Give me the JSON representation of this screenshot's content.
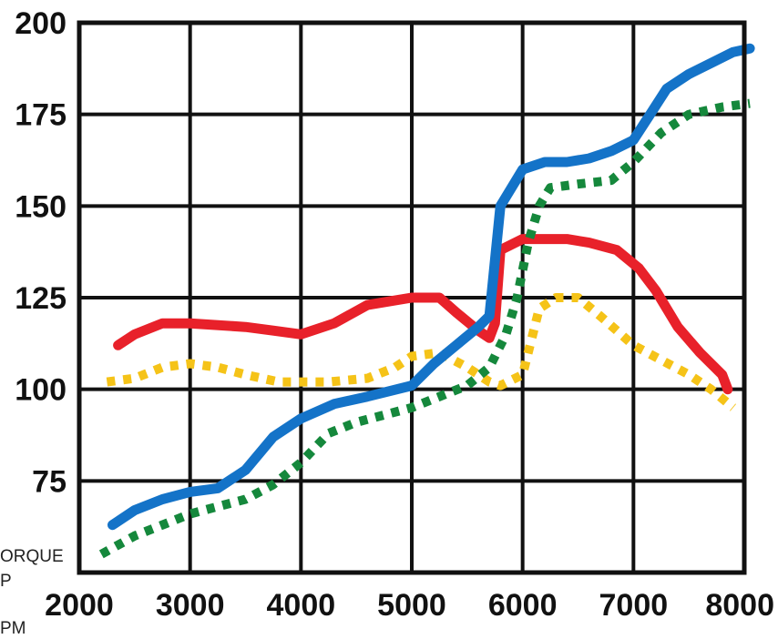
{
  "chart_data": {
    "type": "line",
    "xlim": [
      2000,
      8000
    ],
    "ylim": [
      50,
      200
    ],
    "x_ticks": [
      "2000",
      "3000",
      "4000",
      "5000",
      "6000",
      "7000",
      "8000"
    ],
    "y_ticks": [
      "75",
      "100",
      "125",
      "150",
      "175",
      "200"
    ],
    "grid": true,
    "legend_labels": [
      "ORQUE",
      "P",
      "PM"
    ],
    "series": [
      {
        "color": "#e8212a",
        "style": "solid",
        "points": [
          [
            2350,
            112
          ],
          [
            2500,
            115
          ],
          [
            2750,
            118
          ],
          [
            3000,
            118
          ],
          [
            3500,
            117
          ],
          [
            3750,
            116
          ],
          [
            4000,
            115
          ],
          [
            4300,
            118
          ],
          [
            4600,
            123
          ],
          [
            5000,
            125
          ],
          [
            5250,
            125
          ],
          [
            5400,
            121
          ],
          [
            5600,
            116
          ],
          [
            5700,
            114
          ],
          [
            5750,
            118
          ],
          [
            5800,
            138
          ],
          [
            6000,
            141
          ],
          [
            6400,
            141
          ],
          [
            6600,
            140
          ],
          [
            6850,
            138
          ],
          [
            7050,
            133
          ],
          [
            7200,
            127
          ],
          [
            7400,
            117
          ],
          [
            7600,
            110
          ],
          [
            7800,
            104
          ],
          [
            7850,
            100
          ]
        ]
      },
      {
        "color": "#f5c318",
        "style": "dotted",
        "points": [
          [
            2250,
            102
          ],
          [
            2500,
            103
          ],
          [
            2750,
            106
          ],
          [
            3000,
            107
          ],
          [
            3250,
            106
          ],
          [
            3500,
            104
          ],
          [
            3800,
            102
          ],
          [
            4000,
            102
          ],
          [
            4250,
            102
          ],
          [
            4600,
            103
          ],
          [
            4850,
            106
          ],
          [
            5000,
            109
          ],
          [
            5250,
            110
          ],
          [
            5500,
            106
          ],
          [
            5700,
            102
          ],
          [
            5800,
            101
          ],
          [
            6000,
            104
          ],
          [
            6150,
            122
          ],
          [
            6300,
            125
          ],
          [
            6500,
            125
          ],
          [
            6700,
            120
          ],
          [
            7000,
            112
          ],
          [
            7250,
            108
          ],
          [
            7500,
            104
          ],
          [
            7700,
            100
          ],
          [
            7900,
            95
          ]
        ]
      },
      {
        "color": "#1473c8",
        "style": "solid",
        "points": [
          [
            2300,
            63
          ],
          [
            2500,
            67
          ],
          [
            2750,
            70
          ],
          [
            3000,
            72
          ],
          [
            3250,
            73
          ],
          [
            3500,
            78
          ],
          [
            3750,
            87
          ],
          [
            4000,
            92
          ],
          [
            4300,
            96
          ],
          [
            4600,
            98
          ],
          [
            5000,
            101
          ],
          [
            5200,
            107
          ],
          [
            5400,
            112
          ],
          [
            5600,
            117
          ],
          [
            5700,
            120
          ],
          [
            5800,
            150
          ],
          [
            6000,
            160
          ],
          [
            6200,
            162
          ],
          [
            6400,
            162
          ],
          [
            6600,
            163
          ],
          [
            6800,
            165
          ],
          [
            7000,
            168
          ],
          [
            7150,
            175
          ],
          [
            7300,
            182
          ],
          [
            7500,
            186
          ],
          [
            7700,
            189
          ],
          [
            7900,
            192
          ],
          [
            8050,
            193
          ]
        ]
      },
      {
        "color": "#15883c",
        "style": "dotted",
        "points": [
          [
            2200,
            55
          ],
          [
            2500,
            60
          ],
          [
            2750,
            63
          ],
          [
            3000,
            66
          ],
          [
            3250,
            68
          ],
          [
            3500,
            70
          ],
          [
            3750,
            74
          ],
          [
            4000,
            80
          ],
          [
            4250,
            88
          ],
          [
            4500,
            91
          ],
          [
            4750,
            93
          ],
          [
            5000,
            95
          ],
          [
            5250,
            98
          ],
          [
            5500,
            101
          ],
          [
            5700,
            106
          ],
          [
            5850,
            115
          ],
          [
            5950,
            125
          ],
          [
            6050,
            140
          ],
          [
            6150,
            150
          ],
          [
            6250,
            155
          ],
          [
            6500,
            156
          ],
          [
            6800,
            157
          ],
          [
            7000,
            162
          ],
          [
            7250,
            170
          ],
          [
            7500,
            175
          ],
          [
            7800,
            177
          ],
          [
            8050,
            178
          ]
        ]
      }
    ]
  }
}
